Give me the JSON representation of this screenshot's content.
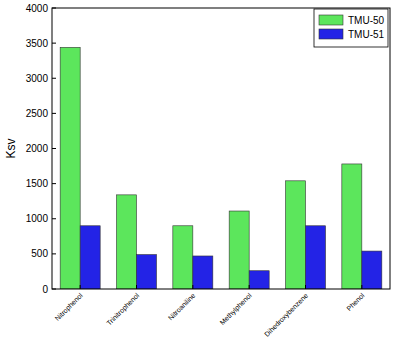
{
  "chart_data": {
    "type": "bar",
    "y_label": "Ksv",
    "categories": [
      "Nitrophenol",
      "Trinitrophenol",
      "Nitroaniline",
      "Methylphenol",
      "Dihedroxybenzene",
      "Phenol"
    ],
    "series": [
      {
        "name": "TMU-50",
        "color": "#5ce65c",
        "values": [
          3440,
          1340,
          900,
          1110,
          1540,
          1780
        ]
      },
      {
        "name": "TMU-51",
        "color": "#2323e6",
        "values": [
          900,
          490,
          470,
          260,
          900,
          540
        ]
      }
    ],
    "ylim": [
      0,
      4000
    ],
    "yticks": [
      0,
      500,
      1000,
      1500,
      2000,
      2500,
      3000,
      3500,
      4000
    ],
    "legend": "upper right",
    "grid": false
  }
}
